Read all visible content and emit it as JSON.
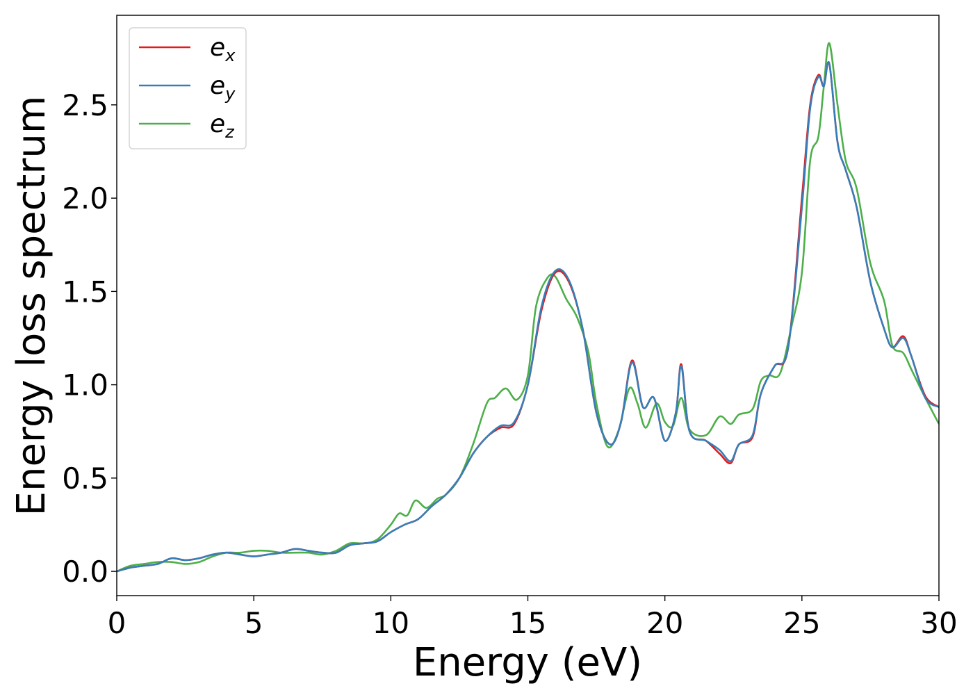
{
  "chart_data": {
    "type": "line",
    "title": "",
    "xlabel": "Energy (eV)",
    "ylabel": "Energy loss spectrum",
    "xlim": [
      0,
      30
    ],
    "ylim": [
      -0.13,
      2.98
    ],
    "xticks": [
      0,
      5,
      10,
      15,
      20,
      25,
      30
    ],
    "xtick_labels": [
      "0",
      "5",
      "10",
      "15",
      "20",
      "25",
      "30"
    ],
    "yticks": [
      0.0,
      0.5,
      1.0,
      1.5,
      2.0,
      2.5
    ],
    "ytick_labels": [
      "0.0",
      "0.5",
      "1.0",
      "1.5",
      "2.0",
      "2.5"
    ],
    "grid": false,
    "legend_position": "top-left",
    "series": [
      {
        "name": "e",
        "subscript": "x",
        "color": "#e41a1c",
        "points": [
          [
            0,
            0.0
          ],
          [
            0.5,
            0.02
          ],
          [
            1.0,
            0.03
          ],
          [
            1.5,
            0.04
          ],
          [
            2.0,
            0.07
          ],
          [
            2.5,
            0.06
          ],
          [
            3.0,
            0.07
          ],
          [
            3.5,
            0.09
          ],
          [
            4.0,
            0.1
          ],
          [
            4.5,
            0.09
          ],
          [
            5.0,
            0.08
          ],
          [
            5.5,
            0.09
          ],
          [
            6.0,
            0.1
          ],
          [
            6.5,
            0.12
          ],
          [
            7.0,
            0.11
          ],
          [
            7.5,
            0.1
          ],
          [
            8.0,
            0.1
          ],
          [
            8.5,
            0.14
          ],
          [
            9.0,
            0.15
          ],
          [
            9.5,
            0.16
          ],
          [
            10.0,
            0.21
          ],
          [
            10.5,
            0.25
          ],
          [
            11.0,
            0.28
          ],
          [
            11.5,
            0.35
          ],
          [
            12.0,
            0.41
          ],
          [
            12.5,
            0.5
          ],
          [
            13.0,
            0.63
          ],
          [
            13.5,
            0.72
          ],
          [
            14.0,
            0.77
          ],
          [
            14.5,
            0.79
          ],
          [
            15.0,
            1.0
          ],
          [
            15.5,
            1.4
          ],
          [
            16.0,
            1.6
          ],
          [
            16.5,
            1.55
          ],
          [
            17.0,
            1.3
          ],
          [
            17.5,
            0.85
          ],
          [
            18.0,
            0.68
          ],
          [
            18.4,
            0.8
          ],
          [
            18.8,
            1.13
          ],
          [
            19.2,
            0.88
          ],
          [
            19.6,
            0.93
          ],
          [
            20.0,
            0.7
          ],
          [
            20.4,
            0.85
          ],
          [
            20.6,
            1.11
          ],
          [
            20.9,
            0.75
          ],
          [
            21.5,
            0.7
          ],
          [
            22.0,
            0.63
          ],
          [
            22.4,
            0.58
          ],
          [
            22.7,
            0.68
          ],
          [
            23.2,
            0.72
          ],
          [
            23.5,
            0.95
          ],
          [
            24.0,
            1.1
          ],
          [
            24.5,
            1.2
          ],
          [
            25.0,
            2.0
          ],
          [
            25.3,
            2.5
          ],
          [
            25.6,
            2.66
          ],
          [
            25.8,
            2.6
          ],
          [
            26.0,
            2.72
          ],
          [
            26.3,
            2.3
          ],
          [
            26.6,
            2.15
          ],
          [
            27.0,
            1.95
          ],
          [
            27.5,
            1.55
          ],
          [
            28.0,
            1.3
          ],
          [
            28.3,
            1.2
          ],
          [
            28.7,
            1.26
          ],
          [
            29.0,
            1.15
          ],
          [
            29.5,
            0.94
          ],
          [
            30.0,
            0.88
          ]
        ]
      },
      {
        "name": "e",
        "subscript": "y",
        "color": "#377eb8",
        "points": [
          [
            0,
            0.0
          ],
          [
            0.5,
            0.02
          ],
          [
            1.0,
            0.03
          ],
          [
            1.5,
            0.04
          ],
          [
            2.0,
            0.07
          ],
          [
            2.5,
            0.06
          ],
          [
            3.0,
            0.07
          ],
          [
            3.5,
            0.09
          ],
          [
            4.0,
            0.1
          ],
          [
            4.5,
            0.09
          ],
          [
            5.0,
            0.08
          ],
          [
            5.5,
            0.09
          ],
          [
            6.0,
            0.1
          ],
          [
            6.5,
            0.12
          ],
          [
            7.0,
            0.11
          ],
          [
            7.5,
            0.1
          ],
          [
            8.0,
            0.1
          ],
          [
            8.5,
            0.14
          ],
          [
            9.0,
            0.15
          ],
          [
            9.5,
            0.16
          ],
          [
            10.0,
            0.21
          ],
          [
            10.5,
            0.25
          ],
          [
            11.0,
            0.28
          ],
          [
            11.5,
            0.35
          ],
          [
            12.0,
            0.41
          ],
          [
            12.5,
            0.5
          ],
          [
            13.0,
            0.63
          ],
          [
            13.5,
            0.72
          ],
          [
            14.0,
            0.78
          ],
          [
            14.5,
            0.8
          ],
          [
            15.0,
            1.0
          ],
          [
            15.5,
            1.42
          ],
          [
            16.0,
            1.61
          ],
          [
            16.5,
            1.56
          ],
          [
            17.0,
            1.3
          ],
          [
            17.5,
            0.85
          ],
          [
            18.0,
            0.68
          ],
          [
            18.4,
            0.8
          ],
          [
            18.8,
            1.12
          ],
          [
            19.2,
            0.88
          ],
          [
            19.6,
            0.93
          ],
          [
            20.0,
            0.7
          ],
          [
            20.4,
            0.85
          ],
          [
            20.6,
            1.1
          ],
          [
            20.9,
            0.75
          ],
          [
            21.5,
            0.7
          ],
          [
            22.0,
            0.65
          ],
          [
            22.4,
            0.59
          ],
          [
            22.7,
            0.68
          ],
          [
            23.2,
            0.73
          ],
          [
            23.5,
            0.95
          ],
          [
            24.0,
            1.1
          ],
          [
            24.5,
            1.2
          ],
          [
            25.0,
            1.95
          ],
          [
            25.3,
            2.48
          ],
          [
            25.6,
            2.65
          ],
          [
            25.8,
            2.6
          ],
          [
            26.0,
            2.72
          ],
          [
            26.3,
            2.3
          ],
          [
            26.6,
            2.15
          ],
          [
            27.0,
            1.95
          ],
          [
            27.5,
            1.55
          ],
          [
            28.0,
            1.3
          ],
          [
            28.3,
            1.2
          ],
          [
            28.7,
            1.25
          ],
          [
            29.0,
            1.15
          ],
          [
            29.5,
            0.93
          ],
          [
            30.0,
            0.88
          ]
        ]
      },
      {
        "name": "e",
        "subscript": "z",
        "color": "#4daf4a",
        "points": [
          [
            0,
            0.0
          ],
          [
            0.5,
            0.03
          ],
          [
            1.0,
            0.04
          ],
          [
            1.5,
            0.05
          ],
          [
            2.0,
            0.05
          ],
          [
            2.5,
            0.04
          ],
          [
            3.0,
            0.05
          ],
          [
            3.5,
            0.08
          ],
          [
            4.0,
            0.1
          ],
          [
            4.5,
            0.1
          ],
          [
            5.0,
            0.11
          ],
          [
            5.5,
            0.11
          ],
          [
            6.0,
            0.1
          ],
          [
            6.5,
            0.1
          ],
          [
            7.0,
            0.1
          ],
          [
            7.5,
            0.09
          ],
          [
            8.0,
            0.11
          ],
          [
            8.5,
            0.15
          ],
          [
            9.0,
            0.15
          ],
          [
            9.5,
            0.17
          ],
          [
            10.0,
            0.25
          ],
          [
            10.3,
            0.31
          ],
          [
            10.6,
            0.3
          ],
          [
            10.9,
            0.38
          ],
          [
            11.3,
            0.34
          ],
          [
            11.7,
            0.39
          ],
          [
            12.0,
            0.41
          ],
          [
            12.5,
            0.5
          ],
          [
            13.0,
            0.68
          ],
          [
            13.5,
            0.9
          ],
          [
            13.8,
            0.93
          ],
          [
            14.2,
            0.98
          ],
          [
            14.6,
            0.92
          ],
          [
            15.0,
            1.05
          ],
          [
            15.3,
            1.42
          ],
          [
            15.7,
            1.57
          ],
          [
            16.0,
            1.58
          ],
          [
            16.4,
            1.46
          ],
          [
            16.8,
            1.36
          ],
          [
            17.2,
            1.18
          ],
          [
            17.5,
            0.9
          ],
          [
            17.9,
            0.67
          ],
          [
            18.3,
            0.75
          ],
          [
            18.7,
            0.98
          ],
          [
            19.0,
            0.9
          ],
          [
            19.3,
            0.77
          ],
          [
            19.7,
            0.9
          ],
          [
            20.0,
            0.8
          ],
          [
            20.3,
            0.78
          ],
          [
            20.6,
            0.93
          ],
          [
            20.9,
            0.76
          ],
          [
            21.5,
            0.73
          ],
          [
            22.0,
            0.83
          ],
          [
            22.4,
            0.79
          ],
          [
            22.7,
            0.84
          ],
          [
            23.2,
            0.87
          ],
          [
            23.5,
            1.02
          ],
          [
            23.8,
            1.05
          ],
          [
            24.2,
            1.06
          ],
          [
            24.6,
            1.3
          ],
          [
            25.0,
            1.6
          ],
          [
            25.3,
            2.2
          ],
          [
            25.6,
            2.33
          ],
          [
            25.8,
            2.6
          ],
          [
            26.0,
            2.83
          ],
          [
            26.3,
            2.5
          ],
          [
            26.6,
            2.2
          ],
          [
            27.0,
            2.05
          ],
          [
            27.5,
            1.65
          ],
          [
            28.0,
            1.45
          ],
          [
            28.3,
            1.21
          ],
          [
            28.7,
            1.17
          ],
          [
            29.0,
            1.08
          ],
          [
            29.5,
            0.93
          ],
          [
            30.0,
            0.79
          ]
        ]
      }
    ]
  }
}
